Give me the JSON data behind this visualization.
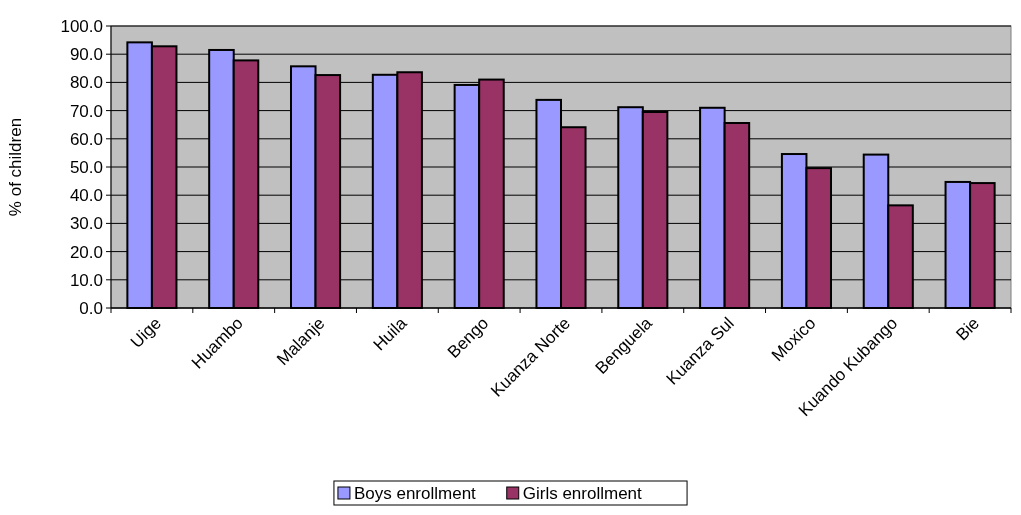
{
  "chart_data": {
    "type": "bar",
    "ylabel": "% of children",
    "categories": [
      "Uige",
      "Huambo",
      "Malanje",
      "Huila",
      "Bengo",
      "Kuanza Norte",
      "Benguela",
      "Kuanza Sul",
      "Moxico",
      "Kuando Kubango",
      "Bie"
    ],
    "series": [
      {
        "name": "Boys enrollment",
        "color": "#9999ff",
        "values": [
          94.2,
          91.5,
          85.7,
          82.7,
          79.1,
          73.8,
          71.2,
          71.0,
          54.6,
          54.4,
          44.7
        ]
      },
      {
        "name": "Girls enrollment",
        "color": "#993366",
        "values": [
          92.8,
          87.8,
          82.6,
          83.6,
          81.0,
          64.1,
          69.5,
          65.6,
          49.6,
          36.4,
          44.3
        ]
      }
    ],
    "ylim": [
      0,
      100
    ],
    "yticks": [
      {
        "value": 0,
        "label": "0.0"
      },
      {
        "value": 10,
        "label": "10.0"
      },
      {
        "value": 20,
        "label": "20.0"
      },
      {
        "value": 30,
        "label": "30.0"
      },
      {
        "value": 40,
        "label": "40.0"
      },
      {
        "value": 50,
        "label": "50.0"
      },
      {
        "value": 60,
        "label": "60.0"
      },
      {
        "value": 70,
        "label": "70.0"
      },
      {
        "value": 80,
        "label": "80.0"
      },
      {
        "value": 90,
        "label": "90.0"
      },
      {
        "value": 100,
        "label": "100.0"
      }
    ],
    "grid": "y",
    "legend": "bottom"
  }
}
